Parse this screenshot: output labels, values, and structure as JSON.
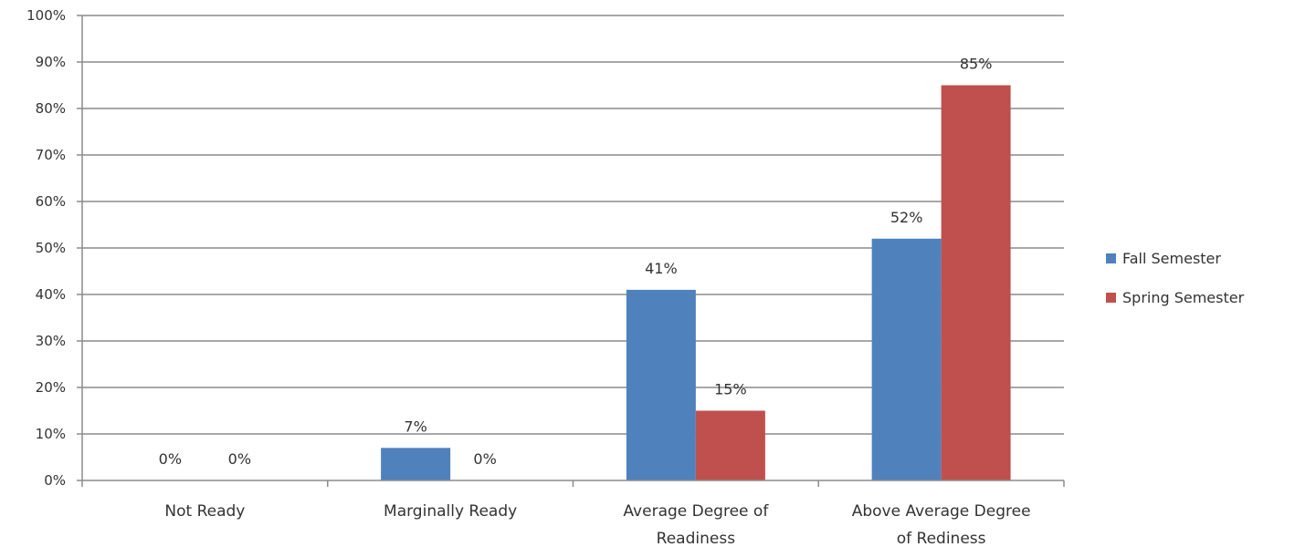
{
  "chart_data": {
    "type": "bar",
    "categories": [
      [
        "Not Ready"
      ],
      [
        "Marginally Ready"
      ],
      [
        "Average Degree of",
        "Readiness"
      ],
      [
        "Above Average Degree",
        "of Rediness"
      ]
    ],
    "series": [
      {
        "name": "Fall Semester",
        "color": "#4f81bd",
        "values": [
          0,
          7,
          41,
          52
        ],
        "labels": [
          "0%",
          "7%",
          "41%",
          "52%"
        ]
      },
      {
        "name": "Spring Semester",
        "color": "#c0504d",
        "values": [
          0,
          0,
          15,
          85
        ],
        "labels": [
          "0%",
          "0%",
          "15%",
          "85%"
        ]
      }
    ],
    "ylim": [
      0,
      100
    ],
    "yticks": [
      0,
      10,
      20,
      30,
      40,
      50,
      60,
      70,
      80,
      90,
      100
    ],
    "ytick_labels": [
      "0%",
      "10%",
      "20%",
      "30%",
      "40%",
      "50%",
      "60%",
      "70%",
      "80%",
      "90%",
      "100%"
    ],
    "grid": true,
    "legend": "right",
    "title": "",
    "xlabel": "",
    "ylabel": ""
  }
}
